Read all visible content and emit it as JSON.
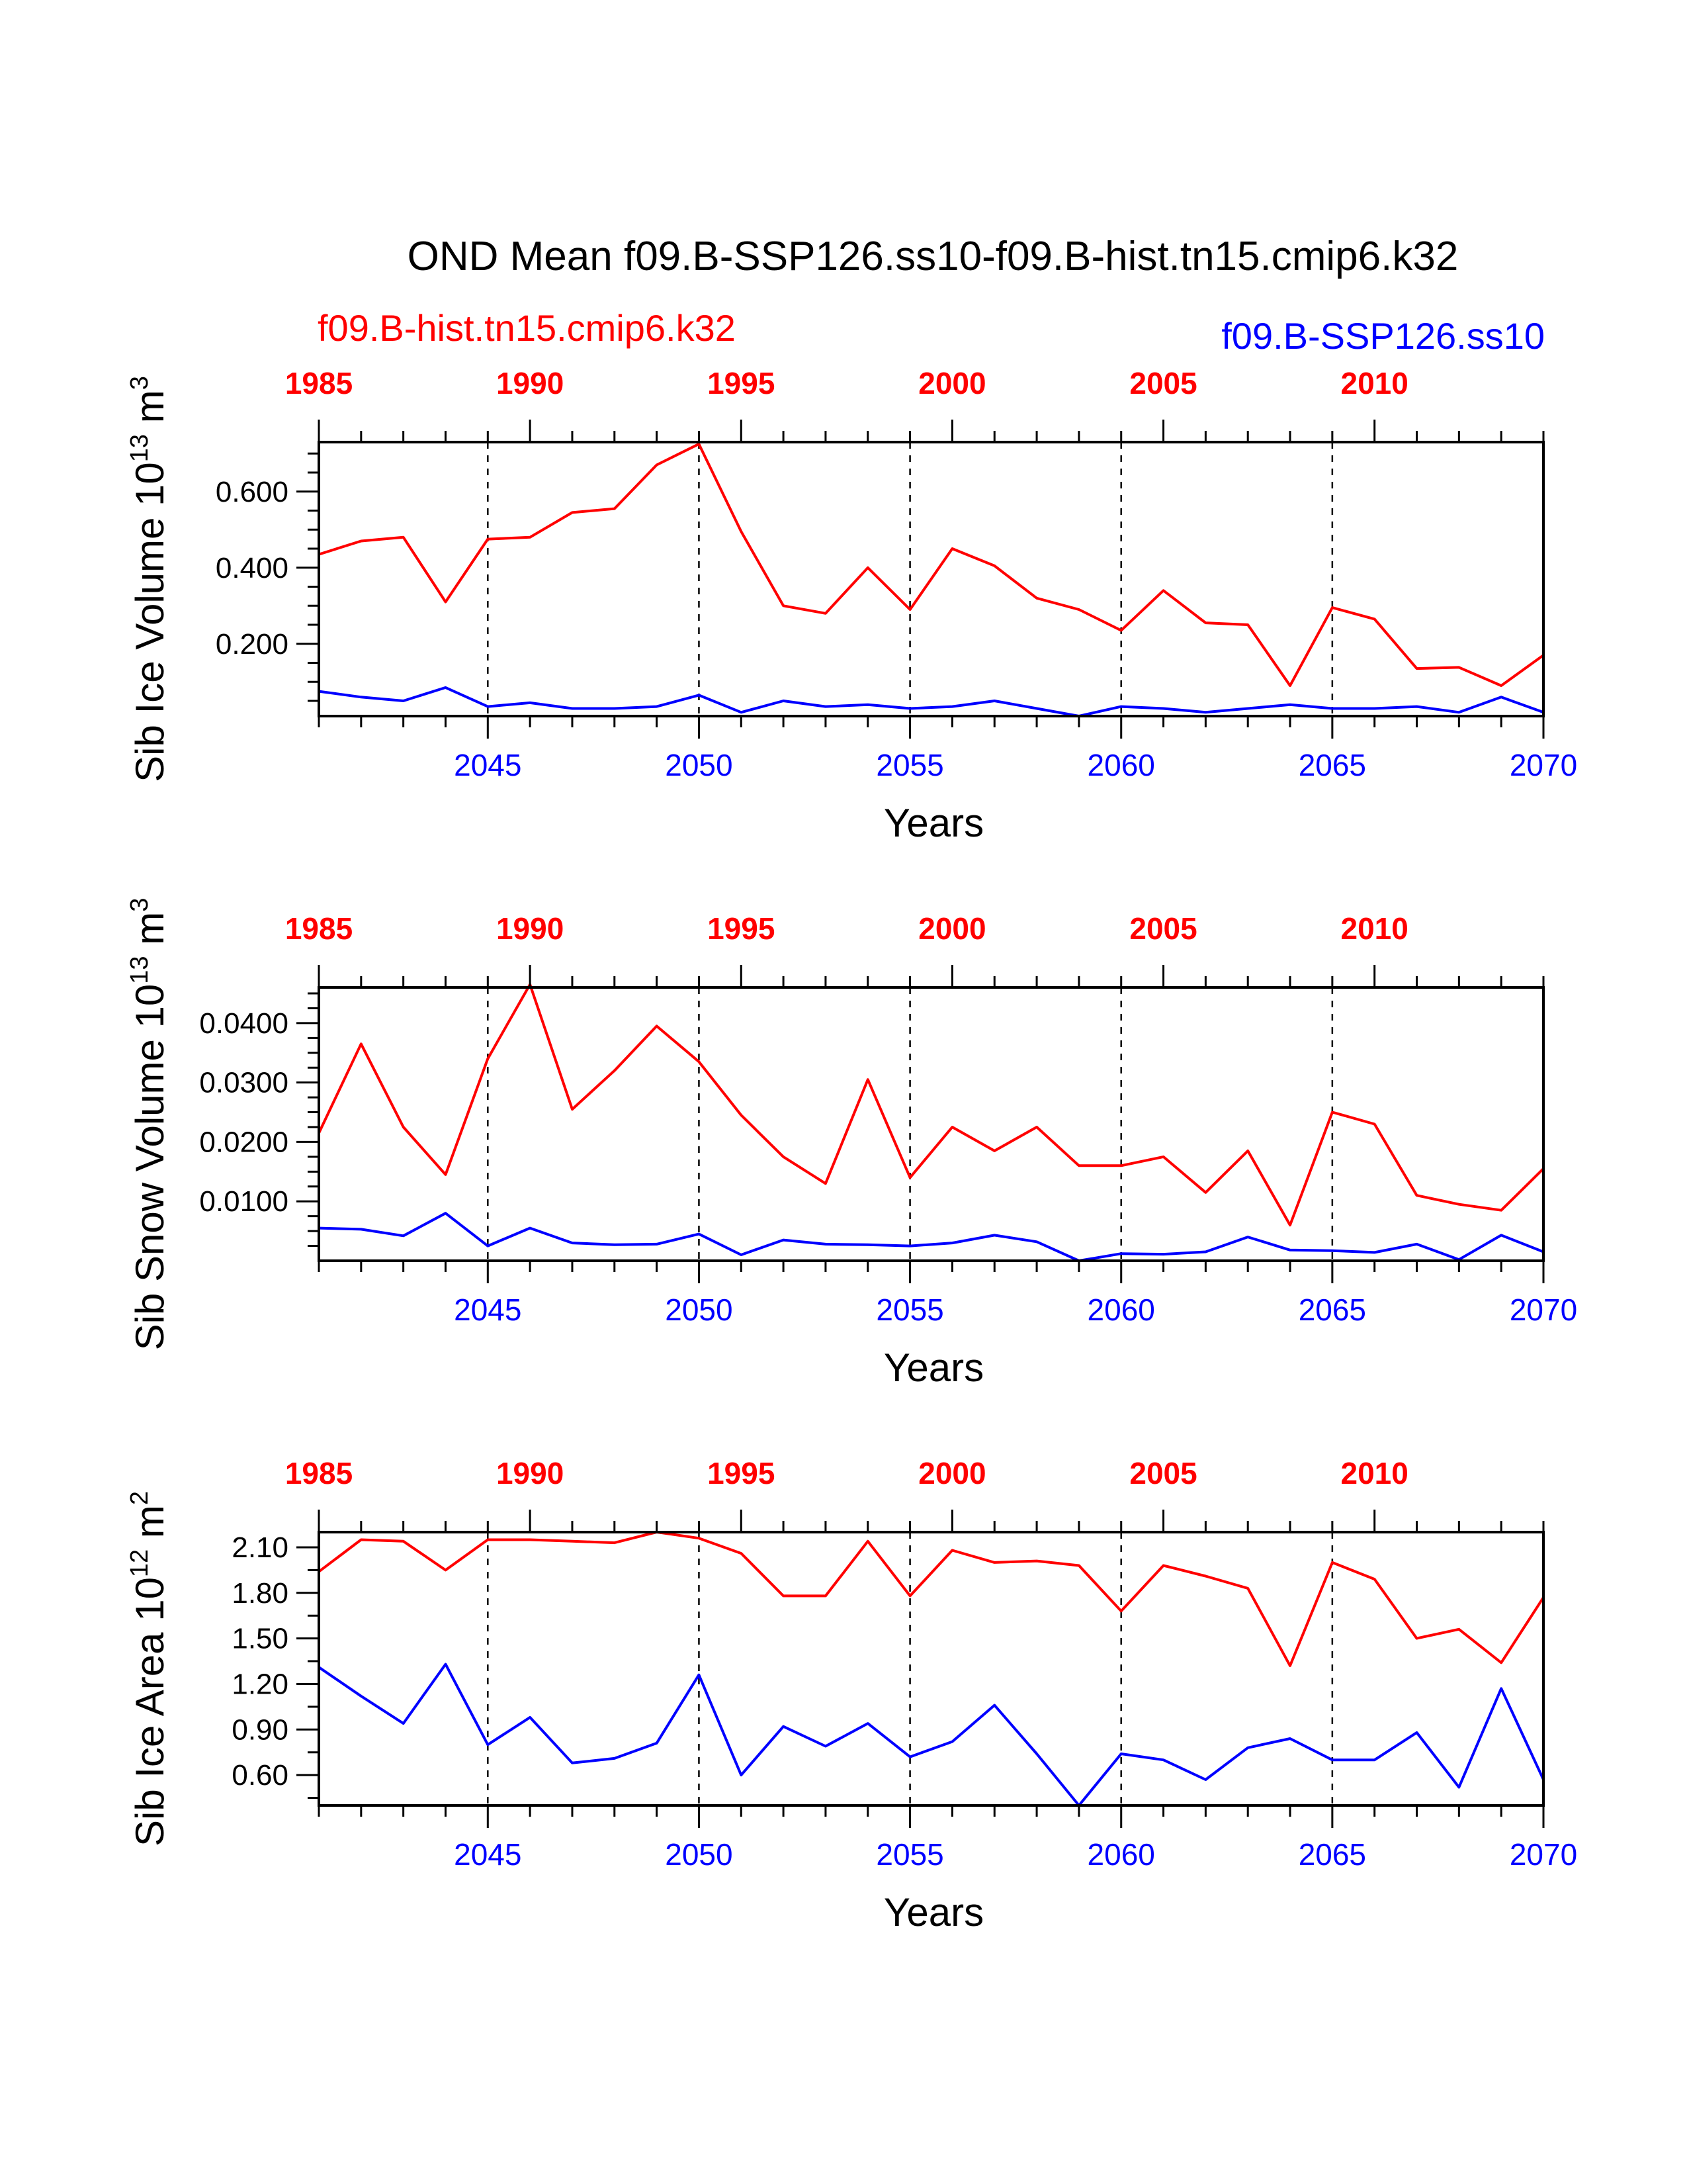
{
  "figure": {
    "title": "OND Mean f09.B-SSP126.ss10-f09.B-hist.tn15.cmip6.k32",
    "legend_red": "f09.B-hist.tn15.cmip6.k32",
    "legend_blue": "f09.B-SSP126.ss10"
  },
  "colors": {
    "hist": "#ff0000",
    "ssp": "#0000ff"
  },
  "chart_data": [
    {
      "type": "line",
      "title": "",
      "xlabel": "Years",
      "ylabel": "Sib Ice Volume 10",
      "ylabel_exp": "13",
      "ylabel_unit": " m",
      "ylabel_unit_exp": "3",
      "ylim": [
        0.01,
        0.73
      ],
      "yticks": [
        0.2,
        0.4,
        0.6
      ],
      "ytick_labels": [
        "0.200",
        "0.400",
        "0.600"
      ],
      "yminor": [
        0.05,
        0.1,
        0.15,
        0.25,
        0.3,
        0.35,
        0.45,
        0.5,
        0.55,
        0.65,
        0.7
      ],
      "xlim": [
        2041,
        2070
      ],
      "xticks_bottom": [
        2045,
        2050,
        2055,
        2060,
        2065,
        2070
      ],
      "xticks_bottom_labels": [
        "2045",
        "2050",
        "2055",
        "2060",
        "2065",
        "2070"
      ],
      "xticks_top": [
        2041,
        2046,
        2051,
        2056,
        2061,
        2066
      ],
      "xticks_top_labels": [
        "1985",
        "1990",
        "1995",
        "2000",
        "2005",
        "2010"
      ],
      "grid_x": [
        2045,
        2050,
        2055,
        2060,
        2065
      ],
      "x": [
        2041,
        2042,
        2043,
        2044,
        2045,
        2046,
        2047,
        2048,
        2049,
        2050,
        2051,
        2052,
        2053,
        2054,
        2055,
        2056,
        2057,
        2058,
        2059,
        2060,
        2061,
        2062,
        2063,
        2064,
        2065,
        2066,
        2067,
        2068,
        2069,
        2070
      ],
      "series": [
        {
          "name": "f09.B-hist.tn15.cmip6.k32",
          "color": "#ff0000",
          "values": [
            0.435,
            0.47,
            0.48,
            0.31,
            0.475,
            0.48,
            0.545,
            0.555,
            0.67,
            0.725,
            0.495,
            0.3,
            0.28,
            0.4,
            0.29,
            0.45,
            0.405,
            0.32,
            0.29,
            0.235,
            0.34,
            0.255,
            0.25,
            0.09,
            0.295,
            0.265,
            0.135,
            0.138,
            0.09,
            0.17
          ]
        },
        {
          "name": "f09.B-SSP126.ss10",
          "color": "#0000ff",
          "values": [
            0.075,
            0.06,
            0.05,
            0.085,
            0.035,
            0.045,
            0.03,
            0.03,
            0.035,
            0.065,
            0.02,
            0.05,
            0.035,
            0.04,
            0.03,
            0.035,
            0.05,
            0.03,
            0.01,
            0.035,
            0.03,
            0.02,
            0.03,
            0.04,
            0.03,
            0.03,
            0.035,
            0.02,
            0.06,
            0.02
          ]
        }
      ]
    },
    {
      "type": "line",
      "title": "",
      "xlabel": "Years",
      "ylabel": "Sib Snow Volume 10",
      "ylabel_exp": "13",
      "ylabel_unit": " m",
      "ylabel_unit_exp": "3",
      "ylim": [
        0.0,
        0.046
      ],
      "yticks": [
        0.01,
        0.02,
        0.03,
        0.04
      ],
      "ytick_labels": [
        "0.0100",
        "0.0200",
        "0.0300",
        "0.0400"
      ],
      "yminor": [
        0.0025,
        0.005,
        0.0075,
        0.0125,
        0.015,
        0.0175,
        0.0225,
        0.025,
        0.0275,
        0.0325,
        0.035,
        0.0375,
        0.0425,
        0.045
      ],
      "xlim": [
        2041,
        2070
      ],
      "xticks_bottom": [
        2045,
        2050,
        2055,
        2060,
        2065,
        2070
      ],
      "xticks_bottom_labels": [
        "2045",
        "2050",
        "2055",
        "2060",
        "2065",
        "2070"
      ],
      "xticks_top": [
        2041,
        2046,
        2051,
        2056,
        2061,
        2066
      ],
      "xticks_top_labels": [
        "1985",
        "1990",
        "1995",
        "2000",
        "2005",
        "2010"
      ],
      "grid_x": [
        2045,
        2050,
        2055,
        2060,
        2065
      ],
      "x": [
        2041,
        2042,
        2043,
        2044,
        2045,
        2046,
        2047,
        2048,
        2049,
        2050,
        2051,
        2052,
        2053,
        2054,
        2055,
        2056,
        2057,
        2058,
        2059,
        2060,
        2061,
        2062,
        2063,
        2064,
        2065,
        2066,
        2067,
        2068,
        2069,
        2070
      ],
      "series": [
        {
          "name": "f09.B-hist.tn15.cmip6.k32",
          "color": "#ff0000",
          "values": [
            0.0215,
            0.0365,
            0.0225,
            0.0145,
            0.034,
            0.0465,
            0.0255,
            0.032,
            0.0395,
            0.0335,
            0.0245,
            0.0175,
            0.013,
            0.0305,
            0.014,
            0.0225,
            0.0185,
            0.0225,
            0.016,
            0.016,
            0.0175,
            0.0115,
            0.0185,
            0.006,
            0.025,
            0.023,
            0.011,
            0.0095,
            0.0085,
            0.0155
          ]
        },
        {
          "name": "f09.B-SSP126.ss10",
          "color": "#0000ff",
          "values": [
            0.0055,
            0.0053,
            0.0042,
            0.008,
            0.0025,
            0.0055,
            0.003,
            0.0027,
            0.0028,
            0.0045,
            0.001,
            0.0035,
            0.0028,
            0.0027,
            0.0025,
            0.003,
            0.0043,
            0.0032,
            0.0,
            0.0012,
            0.0011,
            0.0015,
            0.004,
            0.0018,
            0.0017,
            0.0014,
            0.0028,
            0.0002,
            0.0043,
            0.0015
          ]
        }
      ]
    },
    {
      "type": "line",
      "title": "",
      "xlabel": "Years",
      "ylabel": "Sib Ice Area 10",
      "ylabel_exp": "12",
      "ylabel_unit": " m",
      "ylabel_unit_exp": "2",
      "ylim": [
        0.4,
        2.2
      ],
      "yticks": [
        0.6,
        0.9,
        1.2,
        1.5,
        1.8,
        2.1
      ],
      "ytick_labels": [
        "0.60",
        "0.90",
        "1.20",
        "1.50",
        "1.80",
        "2.10"
      ],
      "yminor": [
        0.45,
        0.75,
        1.05,
        1.35,
        1.65,
        1.95
      ],
      "xlim": [
        2041,
        2070
      ],
      "xticks_bottom": [
        2045,
        2050,
        2055,
        2060,
        2065,
        2070
      ],
      "xticks_bottom_labels": [
        "2045",
        "2050",
        "2055",
        "2060",
        "2065",
        "2070"
      ],
      "xticks_top": [
        2041,
        2046,
        2051,
        2056,
        2061,
        2066
      ],
      "xticks_top_labels": [
        "1985",
        "1990",
        "1995",
        "2000",
        "2005",
        "2010"
      ],
      "grid_x": [
        2045,
        2050,
        2055,
        2060,
        2065
      ],
      "x": [
        2041,
        2042,
        2043,
        2044,
        2045,
        2046,
        2047,
        2048,
        2049,
        2050,
        2051,
        2052,
        2053,
        2054,
        2055,
        2056,
        2057,
        2058,
        2059,
        2060,
        2061,
        2062,
        2063,
        2064,
        2065,
        2066,
        2067,
        2068,
        2069,
        2070
      ],
      "series": [
        {
          "name": "f09.B-hist.tn15.cmip6.k32",
          "color": "#ff0000",
          "values": [
            1.94,
            2.15,
            2.14,
            1.95,
            2.15,
            2.15,
            2.14,
            2.13,
            2.2,
            2.16,
            2.06,
            1.78,
            1.78,
            2.14,
            1.78,
            2.08,
            2.0,
            2.01,
            1.98,
            1.68,
            1.98,
            1.91,
            1.83,
            1.32,
            2.0,
            1.89,
            1.5,
            1.56,
            1.34,
            1.77
          ]
        },
        {
          "name": "f09.B-SSP126.ss10",
          "color": "#0000ff",
          "values": [
            1.31,
            1.12,
            0.94,
            1.33,
            0.8,
            0.98,
            0.68,
            0.71,
            0.81,
            1.26,
            0.6,
            0.92,
            0.79,
            0.94,
            0.72,
            0.82,
            1.06,
            0.74,
            0.4,
            0.74,
            0.7,
            0.57,
            0.78,
            0.84,
            0.7,
            0.7,
            0.88,
            0.52,
            1.17,
            0.57
          ]
        }
      ]
    }
  ]
}
